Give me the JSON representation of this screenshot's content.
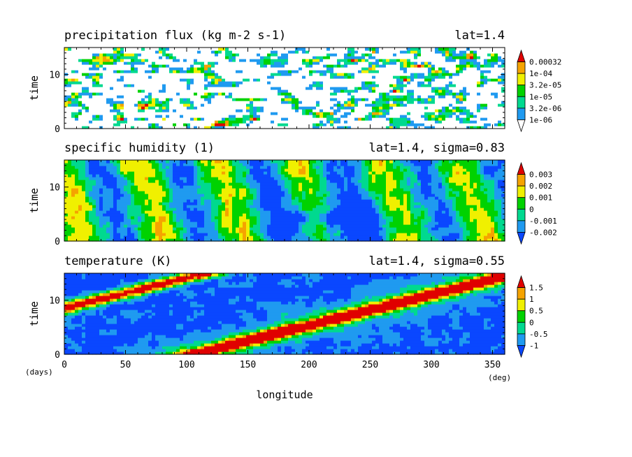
{
  "figure": {
    "xlabel": "longitude",
    "x_unit": "(deg)",
    "y_unit": "(days)"
  },
  "chart_data": [
    {
      "type": "heatmap",
      "title": "precipitation flux (kg m-2 s-1)",
      "subtitle": "lat=1.4",
      "ylabel": "time",
      "xlim": [
        0,
        360
      ],
      "ylim": [
        0,
        15
      ],
      "xticks": [
        0,
        50,
        100,
        150,
        200,
        250,
        300,
        350
      ],
      "yticks": [
        0,
        10
      ],
      "color_levels": [
        "1e-06",
        "3.2e-06",
        "1e-05",
        "3.2e-05",
        "1e-04",
        "0.00032"
      ],
      "colors": [
        "#ffffff",
        "#1f9af0",
        "#00d98f",
        "#00d200",
        "#f0f000",
        "#f5a300",
        "#e00000"
      ],
      "pattern": "precip"
    },
    {
      "type": "heatmap",
      "title": "specific humidity (1)",
      "subtitle": "lat=1.4, sigma=0.83",
      "ylabel": "time",
      "xlim": [
        0,
        360
      ],
      "ylim": [
        0,
        15
      ],
      "xticks": [
        0,
        50,
        100,
        150,
        200,
        250,
        300,
        350
      ],
      "yticks": [
        0,
        10
      ],
      "color_levels": [
        "-0.002",
        "-0.001",
        "0",
        "0.001",
        "0.002",
        "0.003"
      ],
      "colors": [
        "#0a47ff",
        "#1f9af0",
        "#00d98f",
        "#00d200",
        "#f0f000",
        "#f5a300",
        "#e00000"
      ],
      "pattern": "humidity"
    },
    {
      "type": "heatmap",
      "title": "temperature (K)",
      "subtitle": "lat=1.4, sigma=0.55",
      "ylabel": "time",
      "xlim": [
        0,
        360
      ],
      "ylim": [
        0,
        15
      ],
      "xticks": [
        0,
        50,
        100,
        150,
        200,
        250,
        300,
        350
      ],
      "xtick_labels": [
        "0",
        "50",
        "100",
        "150",
        "200",
        "250",
        "300",
        "350"
      ],
      "yticks": [
        0,
        10
      ],
      "color_levels": [
        "-1",
        "-0.5",
        "0",
        "0.5",
        "1",
        "1.5"
      ],
      "colors": [
        "#0a47ff",
        "#1f9af0",
        "#00d98f",
        "#00d200",
        "#f0f000",
        "#f5a300",
        "#e00000"
      ],
      "pattern": "temperature"
    }
  ]
}
